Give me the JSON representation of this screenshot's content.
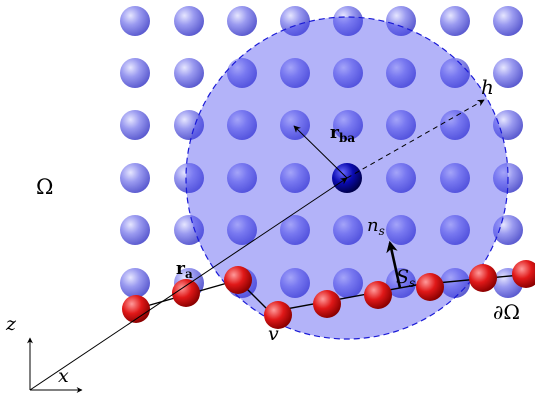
{
  "labels": {
    "domain": "Ω",
    "boundary": "∂Ω",
    "ra_main": "r",
    "ra_sub": "a",
    "rba_main": "r",
    "rba_sub": "ba",
    "h": "h",
    "ns_main": "n",
    "ns_sub": "s",
    "Ss_main": "S",
    "Ss_sub": "s",
    "v": "v",
    "axis_z": "z",
    "axis_x": "x"
  },
  "colors": {
    "fluid_particle": "#7f7fe6",
    "central_particle": "#00008b",
    "boundary_particle": "#d40000",
    "kernel_fill": "#4b4bf0",
    "kernel_border": "#1a1ad6"
  }
}
